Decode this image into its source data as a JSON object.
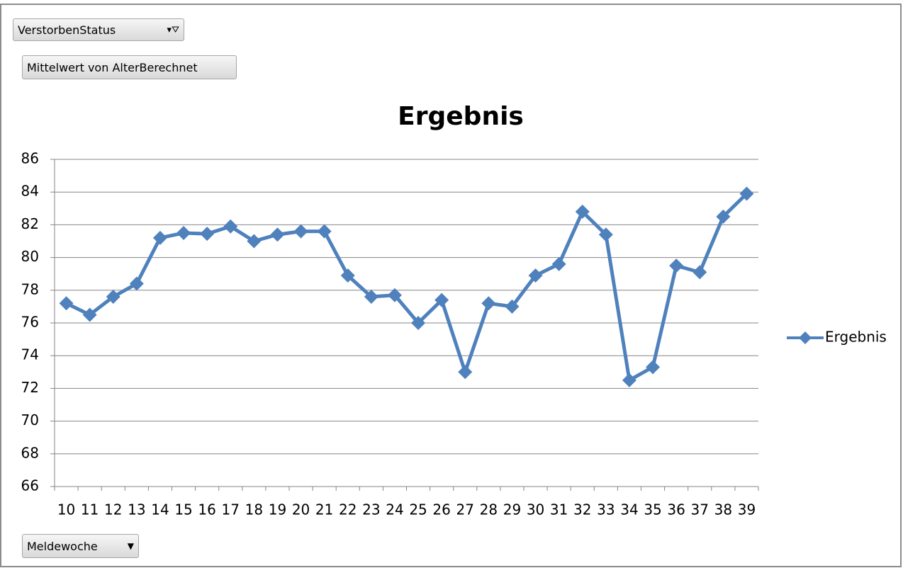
{
  "ui": {
    "filter_button": "VerstorbenStatus",
    "value_button": "Mittelwert von AlterBerechnet",
    "axis_button": "Meldewoche"
  },
  "chart_data": {
    "type": "line",
    "title": "Ergebnis",
    "categories": [
      "10",
      "11",
      "12",
      "13",
      "14",
      "15",
      "16",
      "17",
      "18",
      "19",
      "20",
      "21",
      "22",
      "23",
      "24",
      "25",
      "26",
      "27",
      "28",
      "29",
      "30",
      "31",
      "32",
      "33",
      "34",
      "35",
      "36",
      "37",
      "38",
      "39"
    ],
    "series": [
      {
        "name": "Ergebnis",
        "color": "#4f81bd",
        "values": [
          77.2,
          76.5,
          77.6,
          78.4,
          81.2,
          81.5,
          81.45,
          81.9,
          81.0,
          81.4,
          81.6,
          81.6,
          78.9,
          77.6,
          77.7,
          76.0,
          77.4,
          73.0,
          77.2,
          77.0,
          78.9,
          79.6,
          82.8,
          81.4,
          72.5,
          73.3,
          79.5,
          79.1,
          82.5,
          83.9
        ]
      }
    ],
    "ylim": [
      66,
      86
    ],
    "yticks": [
      66,
      68,
      70,
      72,
      74,
      76,
      78,
      80,
      82,
      84,
      86
    ],
    "grid": true,
    "legend": "right"
  }
}
